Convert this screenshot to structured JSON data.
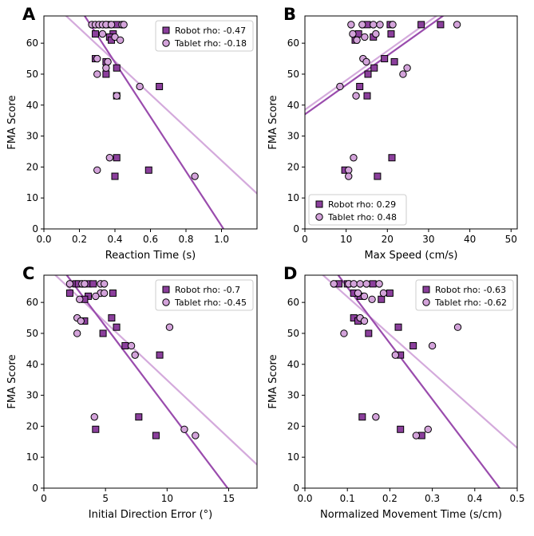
{
  "colors": {
    "robot": "#8b3f9c",
    "tablet": "#d3a3da",
    "robot_line": "#9a4cad",
    "tablet_line": "#d4aadc"
  },
  "chart_data": [
    {
      "type": "scatter",
      "panel_label": "A",
      "xlabel": "Reaction Time (s)",
      "ylabel": "FMA Score",
      "xlim": [
        0,
        1.2
      ],
      "ylim": [
        0,
        68.8
      ],
      "xticks": [
        0,
        0.2,
        0.4,
        0.6,
        0.8,
        1.0
      ],
      "xtick_labels": [
        "0.0",
        "0.2",
        "0.4",
        "0.6",
        "0.8",
        "1.0"
      ],
      "yticks": [
        0,
        10,
        20,
        30,
        40,
        50,
        60
      ],
      "ytick_labels": [
        "0",
        "10",
        "20",
        "30",
        "40",
        "50",
        "60"
      ],
      "legend_position": "top-right",
      "series": [
        {
          "name": "Robot",
          "legend": "Robot rho: -0.47",
          "marker": "square",
          "x": [
            0.36,
            0.41,
            0.29,
            0.39,
            0.37,
            0.38,
            0.29,
            0.35,
            0.41,
            0.35,
            0.65,
            0.41,
            0.41,
            0.59,
            0.4
          ],
          "y": [
            66,
            66,
            63,
            63,
            62,
            61,
            55,
            54,
            52,
            50,
            46,
            43,
            23,
            19,
            17
          ],
          "fit": {
            "slope": -88,
            "intercept": 89
          }
        },
        {
          "name": "Tablet",
          "legend": "Tablet rho: -0.18",
          "marker": "circle",
          "x": [
            0.27,
            0.29,
            0.31,
            0.33,
            0.35,
            0.38,
            0.44,
            0.45,
            0.33,
            0.4,
            0.43,
            0.3,
            0.36,
            0.35,
            0.3,
            0.54,
            0.41,
            0.37,
            0.3,
            0.85
          ],
          "y": [
            66,
            66,
            66,
            66,
            66,
            66,
            66,
            66,
            63,
            62,
            61,
            55,
            54,
            52,
            50,
            46,
            43,
            23,
            19,
            17
          ],
          "fit": {
            "slope": -53.4,
            "intercept": 75.5
          }
        }
      ]
    },
    {
      "type": "scatter",
      "panel_label": "B",
      "xlabel": "Max Speed (cm/s)",
      "ylabel": "FMA Score",
      "xlim": [
        0,
        51.5
      ],
      "ylim": [
        0,
        68.8
      ],
      "xticks": [
        0,
        10,
        20,
        30,
        40,
        50
      ],
      "xtick_labels": [
        "0",
        "10",
        "20",
        "30",
        "40",
        "50"
      ],
      "yticks": [
        0,
        10,
        20,
        30,
        40,
        50,
        60
      ],
      "ytick_labels": [
        "0",
        "10",
        "20",
        "30",
        "40",
        "50",
        "60"
      ],
      "legend_position": "bottom-left",
      "series": [
        {
          "name": "Robot",
          "legend": "Robot rho: 0.29",
          "marker": "square",
          "x": [
            15.1,
            20.7,
            28.2,
            32.9,
            13.0,
            12.2,
            16.6,
            20.9,
            19.3,
            21.7,
            16.8,
            15.3,
            13.3,
            15.1,
            21.1,
            9.7,
            17.6
          ],
          "y": [
            66,
            66,
            66,
            66,
            63,
            61,
            62,
            63,
            55,
            54,
            52,
            50,
            46,
            43,
            23,
            19,
            17
          ],
          "fit": {
            "slope": 0.95,
            "intercept": 37.0
          }
        },
        {
          "name": "Tablet",
          "legend": "Tablet rho: 0.48",
          "marker": "circle",
          "x": [
            11.2,
            13.9,
            16.6,
            18.2,
            21.3,
            36.9,
            11.6,
            12.6,
            14.5,
            17.2,
            14.1,
            14.9,
            24.8,
            23.8,
            8.5,
            12.4,
            11.8,
            10.6,
            10.6
          ],
          "y": [
            66,
            66,
            66,
            66,
            66,
            66,
            63,
            61,
            62,
            63,
            55,
            54,
            52,
            50,
            46,
            43,
            23,
            19,
            17
          ],
          "fit": {
            "slope": 0.95,
            "intercept": 38.5
          }
        }
      ]
    },
    {
      "type": "scatter",
      "panel_label": "C",
      "xlabel": "Initial Direction Error (°)",
      "ylabel": "FMA Score",
      "xlim": [
        0,
        17.3
      ],
      "ylim": [
        0,
        68.8
      ],
      "xticks": [
        0,
        5,
        10,
        15
      ],
      "xtick_labels": [
        "0",
        "5",
        "10",
        "15"
      ],
      "yticks": [
        0,
        10,
        20,
        30,
        40,
        50,
        60
      ],
      "ytick_labels": [
        "0",
        "10",
        "20",
        "30",
        "40",
        "50",
        "60"
      ],
      "legend_position": "top-right",
      "series": [
        {
          "name": "Robot",
          "legend": "Robot rho: -0.7",
          "marker": "square",
          "x": [
            2.6,
            2.8,
            3.6,
            4.0,
            2.1,
            5.6,
            3.6,
            3.3,
            5.5,
            3.3,
            5.9,
            4.8,
            6.6,
            9.4,
            7.7,
            4.2,
            9.1
          ],
          "y": [
            66,
            66,
            66,
            66,
            63,
            63,
            62,
            61,
            55,
            54,
            52,
            50,
            46,
            43,
            23,
            19,
            17
          ],
          "fit": {
            "slope": -5.27,
            "intercept": 78.6
          }
        },
        {
          "name": "Tablet",
          "legend": "Tablet rho: -0.45",
          "marker": "circle",
          "x": [
            2.1,
            3.1,
            3.3,
            4.6,
            4.9,
            4.6,
            4.9,
            4.2,
            2.9,
            2.7,
            3.0,
            10.2,
            2.7,
            7.1,
            7.4,
            4.1,
            11.4,
            12.3
          ],
          "y": [
            66,
            66,
            66,
            66,
            66,
            63,
            63,
            62,
            61,
            55,
            54,
            52,
            50,
            46,
            43,
            23,
            19,
            17
          ],
          "fit": {
            "slope": -3.74,
            "intercept": 72.3
          }
        }
      ]
    },
    {
      "type": "scatter",
      "panel_label": "D",
      "xlabel": "Normalized Movement Time (s/cm)",
      "ylabel": "FMA Score",
      "xlim": [
        0,
        0.5
      ],
      "ylim": [
        0,
        68.8
      ],
      "xticks": [
        0,
        0.1,
        0.2,
        0.3,
        0.4,
        0.5
      ],
      "xtick_labels": [
        "0.0",
        "0.1",
        "0.2",
        "0.3",
        "0.4",
        "0.5"
      ],
      "yticks": [
        0,
        10,
        20,
        30,
        40,
        50,
        60
      ],
      "ytick_labels": [
        "0",
        "10",
        "20",
        "30",
        "40",
        "50",
        "60"
      ],
      "legend_position": "top-right",
      "series": [
        {
          "name": "Robot",
          "legend": "Robot rho: -0.63",
          "marker": "square",
          "x": [
            0.08,
            0.1,
            0.16,
            0.115,
            0.2,
            0.13,
            0.18,
            0.115,
            0.125,
            0.22,
            0.15,
            0.255,
            0.225,
            0.135,
            0.225,
            0.275
          ],
          "y": [
            66,
            66,
            66,
            63,
            63,
            62,
            61,
            55,
            54,
            52,
            50,
            46,
            43,
            23,
            19,
            17
          ],
          "fit": {
            "slope": -181,
            "intercept": 83
          }
        },
        {
          "name": "Tablet",
          "legend": "Tablet rho: -0.62",
          "marker": "circle",
          "x": [
            0.068,
            0.103,
            0.115,
            0.13,
            0.145,
            0.175,
            0.125,
            0.185,
            0.14,
            0.158,
            0.13,
            0.14,
            0.36,
            0.092,
            0.3,
            0.213,
            0.167,
            0.29,
            0.262
          ],
          "y": [
            66,
            66,
            66,
            66,
            66,
            66,
            63,
            63,
            62,
            61,
            55,
            54,
            52,
            50,
            46,
            43,
            23,
            19,
            17
          ],
          "fit": {
            "slope": -122,
            "intercept": 74
          }
        }
      ]
    }
  ]
}
